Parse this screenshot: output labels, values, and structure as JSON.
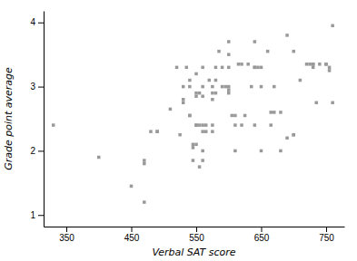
{
  "chart_data": {
    "type": "scatter",
    "xlabel": "Verbal SAT score",
    "ylabel": "Grade point average",
    "color": "#999999",
    "marker": "square",
    "xlim": [
      315,
      778
    ],
    "ylim": [
      0.82,
      4.18
    ],
    "xticks": [
      350,
      450,
      550,
      650,
      750
    ],
    "yticks": [
      1,
      2,
      3,
      4
    ],
    "x": [
      330,
      400,
      450,
      470,
      470,
      470,
      480,
      490,
      490,
      510,
      520,
      525,
      530,
      530,
      530,
      535,
      540,
      540,
      540,
      540,
      545,
      545,
      545,
      550,
      550,
      550,
      550,
      550,
      550,
      555,
      555,
      555,
      560,
      560,
      560,
      560,
      560,
      560,
      560,
      565,
      565,
      570,
      575,
      575,
      575,
      575,
      575,
      580,
      580,
      580,
      585,
      590,
      590,
      595,
      600,
      600,
      600,
      600,
      600,
      600,
      605,
      610,
      610,
      610,
      615,
      620,
      620,
      625,
      630,
      635,
      640,
      640,
      640,
      640,
      645,
      650,
      650,
      650,
      660,
      665,
      665,
      670,
      670,
      680,
      680,
      690,
      690,
      700,
      700,
      700,
      710,
      720,
      725,
      730,
      730,
      730,
      735,
      740,
      750,
      750,
      755,
      755,
      760,
      760
    ],
    "values": [
      2.4,
      1.9,
      1.45,
      1.2,
      1.85,
      1.8,
      2.3,
      2.3,
      2.3,
      2.65,
      3.3,
      2.25,
      3.0,
      2.8,
      2.75,
      3.3,
      3.1,
      3.0,
      2.55,
      2.55,
      2.1,
      2.05,
      1.85,
      3.2,
      2.9,
      2.85,
      2.4,
      2.4,
      2.1,
      2.9,
      2.4,
      1.75,
      3.3,
      3.0,
      2.85,
      2.4,
      2.3,
      2.0,
      1.85,
      2.4,
      2.3,
      3.1,
      3.0,
      2.9,
      2.8,
      2.4,
      2.3,
      3.3,
      3.1,
      2.9,
      3.55,
      3.3,
      3.0,
      3.0,
      3.7,
      3.5,
      3.3,
      3.0,
      2.95,
      2.9,
      2.55,
      2.55,
      2.4,
      2.0,
      3.35,
      3.35,
      2.4,
      2.55,
      3.35,
      3.0,
      3.7,
      3.3,
      3.3,
      2.4,
      3.3,
      3.3,
      3.0,
      2.0,
      3.55,
      2.6,
      2.4,
      3.0,
      2.6,
      2.6,
      2.0,
      3.8,
      2.2,
      3.55,
      2.25,
      2.25,
      3.1,
      3.35,
      3.35,
      3.35,
      3.35,
      3.3,
      2.75,
      3.35,
      3.35,
      3.35,
      3.3,
      3.25,
      3.95,
      2.75
    ]
  }
}
